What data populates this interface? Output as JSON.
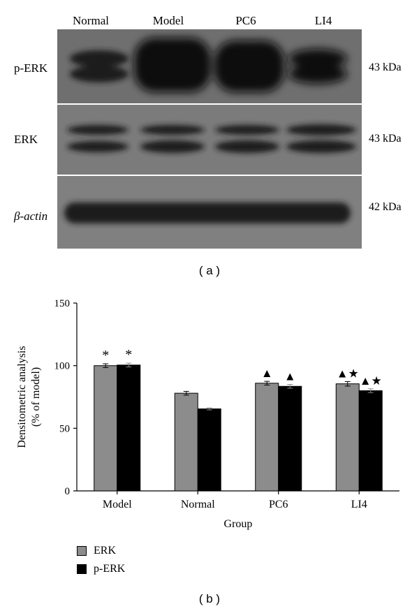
{
  "panel_a": {
    "lanes": [
      "Normal",
      "Model",
      "PC6",
      "LI4"
    ],
    "rows": [
      {
        "label": "p-ERK",
        "kda": "43 kDa"
      },
      {
        "label": "ERK",
        "kda": "43 kDa"
      },
      {
        "label": "β-actin",
        "kda": "42 kDa"
      }
    ],
    "caption": "( a )"
  },
  "panel_b": {
    "caption": "( b )",
    "legend": [
      {
        "label": "ERK",
        "color": "#8c8c8c"
      },
      {
        "label": "p-ERK",
        "color": "#000000"
      }
    ]
  },
  "chart_data": {
    "type": "bar",
    "categories": [
      "Model",
      "Normal",
      "PC6",
      "LI4"
    ],
    "series": [
      {
        "name": "ERK",
        "color": "#8c8c8c",
        "values": [
          100,
          78,
          86,
          85.5
        ],
        "errors": [
          1.5,
          1.5,
          1.5,
          1.8
        ],
        "annotations": [
          "*",
          "",
          "▲",
          "▲★"
        ]
      },
      {
        "name": "p-ERK",
        "color": "#000000",
        "values": [
          100.5,
          65.5,
          83.5,
          80
        ],
        "errors": [
          1.5,
          0.8,
          1.5,
          1.5
        ],
        "annotations": [
          "*",
          "",
          "▲",
          "▲★"
        ]
      }
    ],
    "xlabel": "Group",
    "ylabel": [
      "Densitometric analysis",
      "(% of model)"
    ],
    "ylim": [
      0,
      150
    ],
    "yticks": [
      0,
      50,
      100,
      150
    ],
    "grid": false,
    "legend_position": "bottom-left"
  }
}
